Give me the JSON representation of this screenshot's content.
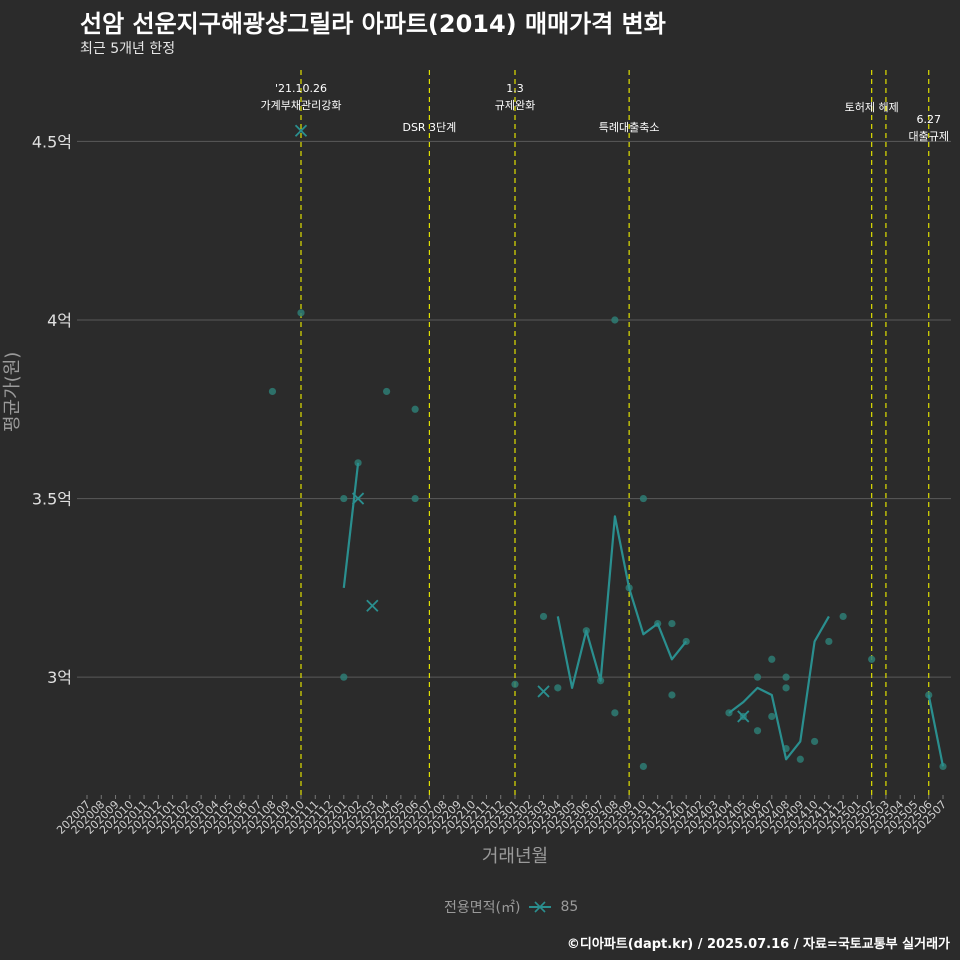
{
  "title": "선암 선운지구해광샹그릴라 아파트(2014) 매매가격 변화",
  "subtitle": "최근 5개년 한정",
  "caption": "©디아파트(dapt.kr) / 2025.07.16 / 자료=국토교통부 실거래가",
  "legend": {
    "title": "전용면적(㎡)",
    "item": "85"
  },
  "colors": {
    "line": "#2a8f8f",
    "point": "#2e7d74",
    "vline": "#e0e000",
    "grid": "#5a5a5a",
    "bg": "#2b2b2b"
  },
  "chart_data": {
    "type": "line",
    "title": "선암 선운지구해광샹그릴라 아파트(2014) 매매가격 변화",
    "xlabel": "거래년월",
    "ylabel": "평균가(원)",
    "ylim": [
      2.67,
      4.7
    ],
    "yticks": [
      3,
      3.5,
      4,
      4.5
    ],
    "ytick_labels": [
      "3억",
      "3.5억",
      "4억",
      "4.5억"
    ],
    "x_categories": [
      "202007",
      "202008",
      "202009",
      "202010",
      "202011",
      "202012",
      "202101",
      "202102",
      "202103",
      "202104",
      "202105",
      "202106",
      "202107",
      "202108",
      "202109",
      "202110",
      "202111",
      "202112",
      "202201",
      "202202",
      "202203",
      "202204",
      "202205",
      "202206",
      "202207",
      "202208",
      "202209",
      "202210",
      "202211",
      "202212",
      "202301",
      "202302",
      "202303",
      "202304",
      "202305",
      "202306",
      "202307",
      "202308",
      "202309",
      "202310",
      "202311",
      "202312",
      "202401",
      "202402",
      "202403",
      "202404",
      "202405",
      "202406",
      "202407",
      "202408",
      "202409",
      "202410",
      "202411",
      "202412",
      "202501",
      "202502",
      "202503",
      "202504",
      "202505",
      "202506",
      "202507"
    ],
    "series": [
      {
        "name": "85",
        "segments": [
          [
            [
              "202201",
              3.25
            ],
            [
              "202202",
              3.6
            ]
          ],
          [
            [
              "202304",
              3.17
            ],
            [
              "202305",
              2.97
            ],
            [
              "202306",
              3.13
            ],
            [
              "202307",
              2.99
            ],
            [
              "202308",
              3.45
            ],
            [
              "202309",
              3.25
            ],
            [
              "202310",
              3.12
            ],
            [
              "202311",
              3.15
            ],
            [
              "202312",
              3.05
            ],
            [
              "202401",
              3.1
            ]
          ],
          [
            [
              "202404",
              2.9
            ],
            [
              "202405",
              2.93
            ],
            [
              "202406",
              2.97
            ],
            [
              "202407",
              2.95
            ],
            [
              "202408",
              2.77
            ],
            [
              "202409",
              2.82
            ],
            [
              "202410",
              3.1
            ],
            [
              "202411",
              3.17
            ]
          ],
          [
            [
              "202506",
              2.95
            ],
            [
              "202507",
              2.75
            ]
          ]
        ],
        "points": [
          [
            "202108",
            3.8
          ],
          [
            "202110",
            4.02
          ],
          [
            "202201",
            3.5
          ],
          [
            "202201",
            3.0
          ],
          [
            "202202",
            3.6
          ],
          [
            "202204",
            3.8
          ],
          [
            "202206",
            3.75
          ],
          [
            "202206",
            3.5
          ],
          [
            "202301",
            2.98
          ],
          [
            "202303",
            3.17
          ],
          [
            "202304",
            2.97
          ],
          [
            "202306",
            3.13
          ],
          [
            "202307",
            2.99
          ],
          [
            "202308",
            4.0
          ],
          [
            "202308",
            2.9
          ],
          [
            "202309",
            3.25
          ],
          [
            "202310",
            3.5
          ],
          [
            "202310",
            2.75
          ],
          [
            "202311",
            3.15
          ],
          [
            "202312",
            3.15
          ],
          [
            "202312",
            2.95
          ],
          [
            "202401",
            3.1
          ],
          [
            "202404",
            2.9
          ],
          [
            "202405",
            2.89
          ],
          [
            "202406",
            3.0
          ],
          [
            "202406",
            2.85
          ],
          [
            "202407",
            3.05
          ],
          [
            "202407",
            2.89
          ],
          [
            "202408",
            3.0
          ],
          [
            "202408",
            2.97
          ],
          [
            "202408",
            2.8
          ],
          [
            "202409",
            2.77
          ],
          [
            "202410",
            2.82
          ],
          [
            "202411",
            3.1
          ],
          [
            "202412",
            3.17
          ],
          [
            "202502",
            3.05
          ],
          [
            "202506",
            2.95
          ],
          [
            "202507",
            2.75
          ]
        ],
        "cross_markers": [
          [
            "202110",
            4.53
          ],
          [
            "202202",
            3.5
          ],
          [
            "202203",
            3.2
          ],
          [
            "202303",
            2.96
          ],
          [
            "202405",
            2.89
          ]
        ]
      }
    ],
    "annotations": [
      {
        "x": "202110",
        "lines": [
          "'21.10.26",
          "가계부채관리강화"
        ],
        "row": 0
      },
      {
        "x": "202207",
        "lines": [
          "DSR 3단계"
        ],
        "row": 2
      },
      {
        "x": "202301",
        "lines": [
          "1.3",
          "규제완화"
        ],
        "row": 0
      },
      {
        "x": "202309",
        "lines": [
          "특례대출축소"
        ],
        "row": 2
      },
      {
        "x": "202502",
        "lines": [
          "토허제 해제"
        ],
        "row": 1
      },
      {
        "x": "202503",
        "lines": [],
        "row": 1
      },
      {
        "x": "202506",
        "lines": [
          "6.27",
          "대출규제"
        ],
        "row": 3
      }
    ]
  }
}
